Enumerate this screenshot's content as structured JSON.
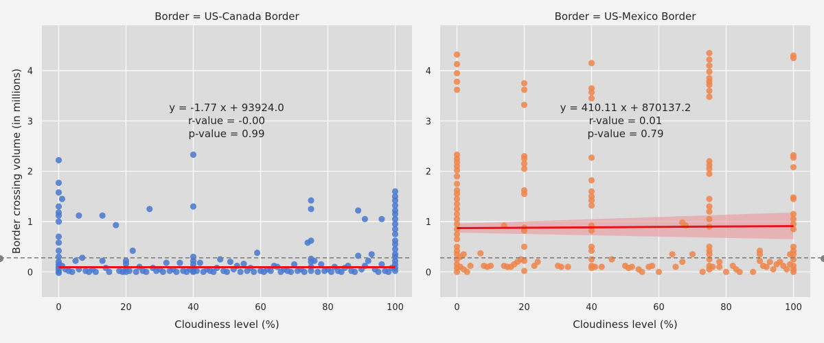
{
  "figure": {
    "ylabel": "Border crossing volume (in millions)",
    "ref_line": 0.28,
    "colors": {
      "background": "#f4f4f4",
      "plot_bg": "#dcdcdc",
      "grid": "#ffffff",
      "reg_line": "#e8121a",
      "ci_band": "#e8a4a8",
      "ref_line": "#808080"
    }
  },
  "chart_data": [
    {
      "type": "scatter",
      "title": "Border = US-Canada Border",
      "xlabel": "Cloudiness level (%)",
      "ylabel": "Border crossing volume (in millions)",
      "xlim": [
        -5,
        105
      ],
      "ylim": [
        -0.5,
        4.9
      ],
      "xticks": [
        0,
        20,
        40,
        60,
        80,
        100
      ],
      "yticks": [
        0,
        1,
        2,
        3,
        4
      ],
      "color": "#4878d0",
      "annotation": [
        "y = -1.77 x + 93924.0",
        "r-value = -0.00",
        "p-value = 0.99"
      ],
      "regression": {
        "x": [
          0,
          100
        ],
        "y": [
          0.094,
          0.094
        ],
        "ci": 0.02
      },
      "points": [
        [
          0,
          2.22
        ],
        [
          0,
          1.77
        ],
        [
          0,
          1.58
        ],
        [
          0,
          1.3
        ],
        [
          0,
          1.18
        ],
        [
          0,
          1.12
        ],
        [
          0,
          1.0
        ],
        [
          0,
          0.7
        ],
        [
          0,
          0.58
        ],
        [
          0,
          0.42
        ],
        [
          0,
          0.3
        ],
        [
          0,
          0.2
        ],
        [
          0,
          0.15
        ],
        [
          0,
          0.1
        ],
        [
          0,
          0.05
        ],
        [
          0,
          0.0
        ],
        [
          0,
          -0.02
        ],
        [
          1,
          1.45
        ],
        [
          1,
          0.12
        ],
        [
          2,
          0.05
        ],
        [
          3,
          0.02
        ],
        [
          4,
          0.0
        ],
        [
          5,
          0.22
        ],
        [
          6,
          1.12
        ],
        [
          6,
          0.05
        ],
        [
          7,
          0.28
        ],
        [
          8,
          0.02
        ],
        [
          9,
          0.0
        ],
        [
          10,
          0.05
        ],
        [
          11,
          0.0
        ],
        [
          13,
          1.12
        ],
        [
          13,
          0.22
        ],
        [
          14,
          0.08
        ],
        [
          15,
          0.0
        ],
        [
          17,
          0.93
        ],
        [
          18,
          0.02
        ],
        [
          19,
          0.0
        ],
        [
          20,
          0.22
        ],
        [
          20,
          0.16
        ],
        [
          20,
          0.08
        ],
        [
          20,
          0.0
        ],
        [
          21,
          0.02
        ],
        [
          22,
          0.42
        ],
        [
          23,
          0.0
        ],
        [
          24,
          0.1
        ],
        [
          25,
          0.02
        ],
        [
          26,
          0.0
        ],
        [
          27,
          1.25
        ],
        [
          28,
          0.08
        ],
        [
          29,
          0.02
        ],
        [
          30,
          0.05
        ],
        [
          31,
          0.0
        ],
        [
          32,
          0.18
        ],
        [
          33,
          0.02
        ],
        [
          34,
          0.05
        ],
        [
          35,
          0.0
        ],
        [
          36,
          0.18
        ],
        [
          37,
          0.02
        ],
        [
          38,
          0.0
        ],
        [
          39,
          0.05
        ],
        [
          40,
          2.33
        ],
        [
          40,
          1.3
        ],
        [
          40,
          0.3
        ],
        [
          40,
          0.22
        ],
        [
          40,
          0.15
        ],
        [
          40,
          0.08
        ],
        [
          40,
          0.02
        ],
        [
          40,
          0.0
        ],
        [
          41,
          0.02
        ],
        [
          42,
          0.18
        ],
        [
          43,
          0.0
        ],
        [
          44,
          0.05
        ],
        [
          45,
          0.02
        ],
        [
          46,
          0.0
        ],
        [
          47,
          0.08
        ],
        [
          48,
          0.25
        ],
        [
          49,
          0.02
        ],
        [
          50,
          0.0
        ],
        [
          51,
          0.2
        ],
        [
          52,
          0.05
        ],
        [
          53,
          0.12
        ],
        [
          54,
          0.0
        ],
        [
          55,
          0.16
        ],
        [
          56,
          0.02
        ],
        [
          57,
          0.08
        ],
        [
          58,
          0.0
        ],
        [
          59,
          0.38
        ],
        [
          60,
          0.02
        ],
        [
          61,
          0.0
        ],
        [
          62,
          0.05
        ],
        [
          63,
          0.02
        ],
        [
          64,
          0.12
        ],
        [
          65,
          0.1
        ],
        [
          66,
          0.0
        ],
        [
          67,
          0.05
        ],
        [
          68,
          0.02
        ],
        [
          69,
          0.0
        ],
        [
          70,
          0.15
        ],
        [
          71,
          0.02
        ],
        [
          72,
          0.05
        ],
        [
          73,
          0.0
        ],
        [
          74,
          0.58
        ],
        [
          75,
          0.62
        ],
        [
          75,
          1.42
        ],
        [
          75,
          1.25
        ],
        [
          75,
          0.26
        ],
        [
          75,
          0.2
        ],
        [
          75,
          0.1
        ],
        [
          75,
          0.02
        ],
        [
          76,
          0.22
        ],
        [
          77,
          0.0
        ],
        [
          78,
          0.15
        ],
        [
          79,
          0.02
        ],
        [
          80,
          0.05
        ],
        [
          81,
          0.0
        ],
        [
          82,
          0.1
        ],
        [
          83,
          0.02
        ],
        [
          84,
          0.0
        ],
        [
          85,
          0.08
        ],
        [
          86,
          0.12
        ],
        [
          87,
          0.02
        ],
        [
          88,
          0.0
        ],
        [
          89,
          1.22
        ],
        [
          89,
          0.32
        ],
        [
          90,
          0.05
        ],
        [
          91,
          1.05
        ],
        [
          91,
          0.12
        ],
        [
          92,
          0.22
        ],
        [
          93,
          0.35
        ],
        [
          94,
          0.05
        ],
        [
          95,
          0.0
        ],
        [
          96,
          1.05
        ],
        [
          96,
          0.15
        ],
        [
          97,
          0.02
        ],
        [
          98,
          0.0
        ],
        [
          99,
          0.08
        ],
        [
          100,
          1.6
        ],
        [
          100,
          1.5
        ],
        [
          100,
          1.42
        ],
        [
          100,
          1.32
        ],
        [
          100,
          1.22
        ],
        [
          100,
          1.15
        ],
        [
          100,
          1.05
        ],
        [
          100,
          0.95
        ],
        [
          100,
          0.85
        ],
        [
          100,
          0.75
        ],
        [
          100,
          0.62
        ],
        [
          100,
          0.55
        ],
        [
          100,
          0.45
        ],
        [
          100,
          0.35
        ],
        [
          100,
          0.3
        ],
        [
          100,
          0.22
        ],
        [
          100,
          0.15
        ],
        [
          100,
          0.08
        ],
        [
          100,
          0.02
        ]
      ]
    },
    {
      "type": "scatter",
      "title": "Border = US-Mexico Border",
      "xlabel": "Cloudiness level (%)",
      "ylabel": "",
      "xlim": [
        -5,
        105
      ],
      "ylim": [
        -0.5,
        4.9
      ],
      "xticks": [
        0,
        20,
        40,
        60,
        80,
        100
      ],
      "yticks": [
        0,
        1,
        2,
        3,
        4
      ],
      "color": "#ee854a",
      "annotation": [
        "y = 410.11 x + 870137.2",
        "r-value = 0.01",
        "p-value = 0.79"
      ],
      "regression": {
        "x": [
          0,
          100
        ],
        "y": [
          0.87,
          0.91
        ],
        "ci_low": [
          0.78,
          0.65
        ],
        "ci_high": [
          0.96,
          1.18
        ]
      },
      "points": [
        [
          0,
          4.32
        ],
        [
          0,
          4.13
        ],
        [
          0,
          3.95
        ],
        [
          0,
          3.78
        ],
        [
          0,
          3.62
        ],
        [
          0,
          2.33
        ],
        [
          0,
          2.25
        ],
        [
          0,
          2.18
        ],
        [
          0,
          2.1
        ],
        [
          0,
          2.02
        ],
        [
          0,
          1.9
        ],
        [
          0,
          1.75
        ],
        [
          0,
          1.62
        ],
        [
          0,
          1.55
        ],
        [
          0,
          1.45
        ],
        [
          0,
          1.35
        ],
        [
          0,
          1.25
        ],
        [
          0,
          1.15
        ],
        [
          0,
          1.05
        ],
        [
          0,
          0.95
        ],
        [
          0,
          0.85
        ],
        [
          0,
          0.75
        ],
        [
          0,
          0.65
        ],
        [
          0,
          0.5
        ],
        [
          0,
          0.42
        ],
        [
          0,
          0.35
        ],
        [
          0,
          0.25
        ],
        [
          0,
          0.15
        ],
        [
          0,
          0.08
        ],
        [
          0,
          0.0
        ],
        [
          1,
          0.3
        ],
        [
          1,
          0.1
        ],
        [
          2,
          0.05
        ],
        [
          2,
          0.35
        ],
        [
          3,
          0.0
        ],
        [
          4,
          0.12
        ],
        [
          7,
          0.37
        ],
        [
          8,
          0.12
        ],
        [
          9,
          0.1
        ],
        [
          10,
          0.12
        ],
        [
          14,
          0.92
        ],
        [
          14,
          0.12
        ],
        [
          15,
          0.1
        ],
        [
          16,
          0.1
        ],
        [
          17,
          0.15
        ],
        [
          18,
          0.2
        ],
        [
          19,
          0.25
        ],
        [
          20,
          3.75
        ],
        [
          20,
          3.62
        ],
        [
          20,
          3.32
        ],
        [
          20,
          2.3
        ],
        [
          20,
          2.25
        ],
        [
          20,
          2.15
        ],
        [
          20,
          2.05
        ],
        [
          20,
          1.62
        ],
        [
          20,
          1.55
        ],
        [
          20,
          0.88
        ],
        [
          20,
          0.82
        ],
        [
          20,
          0.5
        ],
        [
          20,
          0.22
        ],
        [
          20,
          0.02
        ],
        [
          23,
          0.12
        ],
        [
          24,
          0.2
        ],
        [
          30,
          0.12
        ],
        [
          31,
          0.1
        ],
        [
          33,
          0.1
        ],
        [
          40,
          4.15
        ],
        [
          40,
          3.65
        ],
        [
          40,
          3.57
        ],
        [
          40,
          3.45
        ],
        [
          40,
          2.27
        ],
        [
          40,
          1.82
        ],
        [
          40,
          1.6
        ],
        [
          40,
          1.5
        ],
        [
          40,
          1.42
        ],
        [
          40,
          1.32
        ],
        [
          40,
          0.92
        ],
        [
          40,
          0.82
        ],
        [
          40,
          0.5
        ],
        [
          40,
          0.42
        ],
        [
          40,
          0.25
        ],
        [
          40,
          0.12
        ],
        [
          40,
          0.08
        ],
        [
          41,
          0.1
        ],
        [
          43,
          0.1
        ],
        [
          46,
          0.25
        ],
        [
          50,
          0.12
        ],
        [
          51,
          0.08
        ],
        [
          52,
          0.1
        ],
        [
          54,
          0.05
        ],
        [
          55,
          0.0
        ],
        [
          57,
          0.1
        ],
        [
          58,
          0.12
        ],
        [
          60,
          0.0
        ],
        [
          64,
          0.35
        ],
        [
          65,
          0.1
        ],
        [
          67,
          0.98
        ],
        [
          68,
          0.92
        ],
        [
          67,
          0.2
        ],
        [
          70,
          0.35
        ],
        [
          75,
          4.35
        ],
        [
          75,
          4.22
        ],
        [
          75,
          4.1
        ],
        [
          75,
          3.98
        ],
        [
          75,
          3.85
        ],
        [
          75,
          3.78
        ],
        [
          75,
          3.72
        ],
        [
          75,
          3.6
        ],
        [
          75,
          3.48
        ],
        [
          75,
          2.2
        ],
        [
          75,
          2.12
        ],
        [
          75,
          2.05
        ],
        [
          75,
          1.95
        ],
        [
          75,
          1.45
        ],
        [
          75,
          1.3
        ],
        [
          75,
          1.2
        ],
        [
          75,
          1.05
        ],
        [
          75,
          0.9
        ],
        [
          75,
          0.5
        ],
        [
          75,
          0.42
        ],
        [
          75,
          0.35
        ],
        [
          75,
          0.25
        ],
        [
          75,
          0.12
        ],
        [
          75,
          0.05
        ],
        [
          73,
          0.0
        ],
        [
          76,
          0.1
        ],
        [
          78,
          0.2
        ],
        [
          78,
          0.1
        ],
        [
          80,
          0.0
        ],
        [
          82,
          0.12
        ],
        [
          83,
          0.05
        ],
        [
          84,
          0.0
        ],
        [
          88,
          0.0
        ],
        [
          90,
          0.42
        ],
        [
          90,
          0.35
        ],
        [
          90,
          0.22
        ],
        [
          91,
          0.12
        ],
        [
          92,
          0.1
        ],
        [
          93,
          0.2
        ],
        [
          94,
          0.05
        ],
        [
          95,
          0.15
        ],
        [
          96,
          0.2
        ],
        [
          97,
          0.12
        ],
        [
          98,
          0.05
        ],
        [
          99,
          0.35
        ],
        [
          99,
          0.15
        ],
        [
          100,
          4.3
        ],
        [
          100,
          4.25
        ],
        [
          100,
          2.32
        ],
        [
          100,
          2.27
        ],
        [
          100,
          2.08
        ],
        [
          100,
          1.48
        ],
        [
          100,
          1.45
        ],
        [
          100,
          1.15
        ],
        [
          100,
          1.05
        ],
        [
          100,
          0.95
        ],
        [
          100,
          0.85
        ],
        [
          100,
          0.5
        ],
        [
          100,
          0.42
        ],
        [
          100,
          0.35
        ],
        [
          100,
          0.25
        ],
        [
          100,
          0.12
        ],
        [
          100,
          0.05
        ],
        [
          100,
          0.0
        ]
      ]
    }
  ]
}
